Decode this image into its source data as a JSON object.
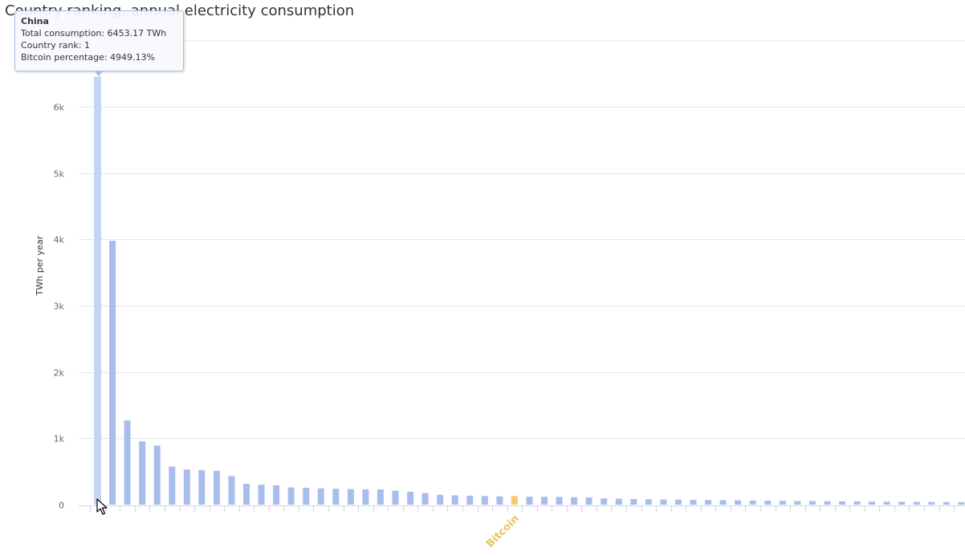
{
  "chart_data": {
    "type": "bar",
    "title": "Country ranking, annual electricity consumption",
    "ylabel": "TWh per year",
    "ylim": [
      0,
      7000
    ],
    "y_ticks": [
      0,
      1000,
      2000,
      3000,
      4000,
      5000,
      6000
    ],
    "y_tick_labels": [
      "0",
      "1k",
      "2k",
      "3k",
      "4k",
      "5k",
      "6k"
    ],
    "grid": true,
    "labeled_categories": [
      "Bitcoin"
    ],
    "highlight_category_index": 28,
    "values": [
      6453.17,
      3980,
      1270,
      955,
      890,
      575,
      530,
      520,
      510,
      430,
      315,
      300,
      290,
      260,
      255,
      245,
      240,
      235,
      230,
      230,
      210,
      195,
      175,
      150,
      140,
      135,
      130,
      125,
      130,
      120,
      118,
      115,
      113,
      110,
      95,
      90,
      85,
      80,
      78,
      75,
      72,
      70,
      68,
      65,
      62,
      60,
      58,
      56,
      55,
      52,
      50,
      48,
      46,
      45,
      44,
      42,
      40,
      40,
      38,
      36,
      35
    ],
    "colors": {
      "bar": "#a9bdec",
      "hover_bar": "#c6d4f6",
      "highlight_bar": "#f2cb6c",
      "highlight_label": "#e9c35d",
      "grid": "#e6e6e6",
      "axis": "#ccd6eb"
    }
  },
  "tooltip": {
    "name": "China",
    "line1": "Total consumption: 6453.17 TWh",
    "line2": "Country rank: 1",
    "line3": "Bitcoin percentage: 4949.13%"
  },
  "cursor": {
    "icon": "mouse-pointer-icon"
  }
}
